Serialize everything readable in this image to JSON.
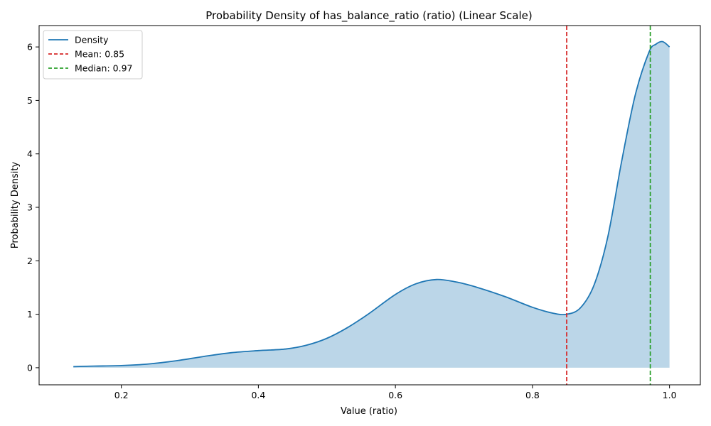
{
  "chart_data": {
    "type": "area",
    "title": "Probability Density of has_balance_ratio (ratio) (Linear Scale)",
    "xlabel": "Value (ratio)",
    "ylabel": "Probability Density",
    "xlim": [
      0.08,
      1.045
    ],
    "ylim": [
      -0.32,
      6.4
    ],
    "xticks": [
      0.2,
      0.4,
      0.6,
      0.8,
      1.0
    ],
    "xtick_labels": [
      "0.2",
      "0.4",
      "0.6",
      "0.8",
      "1.0"
    ],
    "yticks": [
      0,
      1,
      2,
      3,
      4,
      5,
      6
    ],
    "ytick_labels": [
      "0",
      "1",
      "2",
      "3",
      "4",
      "5",
      "6"
    ],
    "grid": false,
    "legend_position": "top-left",
    "series": [
      {
        "name": "Density",
        "color": "#1f77b4",
        "fill_color": "#1f77b4",
        "fill_opacity": 0.3,
        "x": [
          0.13,
          0.16,
          0.2,
          0.24,
          0.28,
          0.32,
          0.36,
          0.4,
          0.44,
          0.47,
          0.5,
          0.53,
          0.56,
          0.6,
          0.63,
          0.66,
          0.69,
          0.72,
          0.76,
          0.8,
          0.83,
          0.85,
          0.87,
          0.89,
          0.91,
          0.93,
          0.95,
          0.97,
          0.98,
          0.99,
          1.0
        ],
        "y": [
          0.02,
          0.03,
          0.04,
          0.07,
          0.13,
          0.21,
          0.28,
          0.32,
          0.35,
          0.42,
          0.55,
          0.75,
          1.0,
          1.37,
          1.57,
          1.65,
          1.6,
          1.5,
          1.33,
          1.13,
          1.02,
          1.0,
          1.12,
          1.55,
          2.45,
          3.85,
          5.1,
          5.9,
          6.05,
          6.1,
          6.0
        ]
      }
    ],
    "reference_lines": [
      {
        "name": "Mean: 0.85",
        "x": 0.85,
        "color": "#d62728",
        "dash": true
      },
      {
        "name": "Median: 0.97",
        "x": 0.972,
        "color": "#2ca02c",
        "dash": true
      }
    ]
  }
}
